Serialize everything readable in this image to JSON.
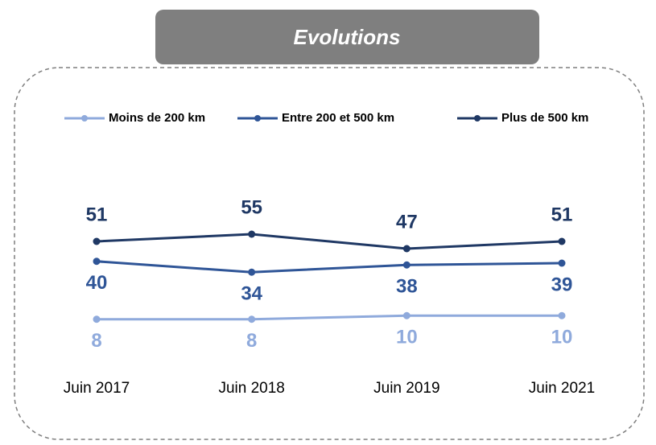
{
  "chart_data": {
    "type": "line",
    "title": "Evolutions",
    "categories": [
      "Juin 2017",
      "Juin 2018",
      "Juin 2019",
      "Juin 2021"
    ],
    "series": [
      {
        "name": "Moins de 200 km",
        "color": "#8faadc",
        "values": [
          8,
          8,
          10,
          10
        ]
      },
      {
        "name": "Entre 200 et 500 km",
        "color": "#2f5597",
        "values": [
          40,
          34,
          38,
          39
        ]
      },
      {
        "name": "Plus de 500 km",
        "color": "#1f3864",
        "values": [
          51,
          55,
          47,
          51
        ]
      }
    ],
    "ylim": [
      0,
      60
    ]
  }
}
